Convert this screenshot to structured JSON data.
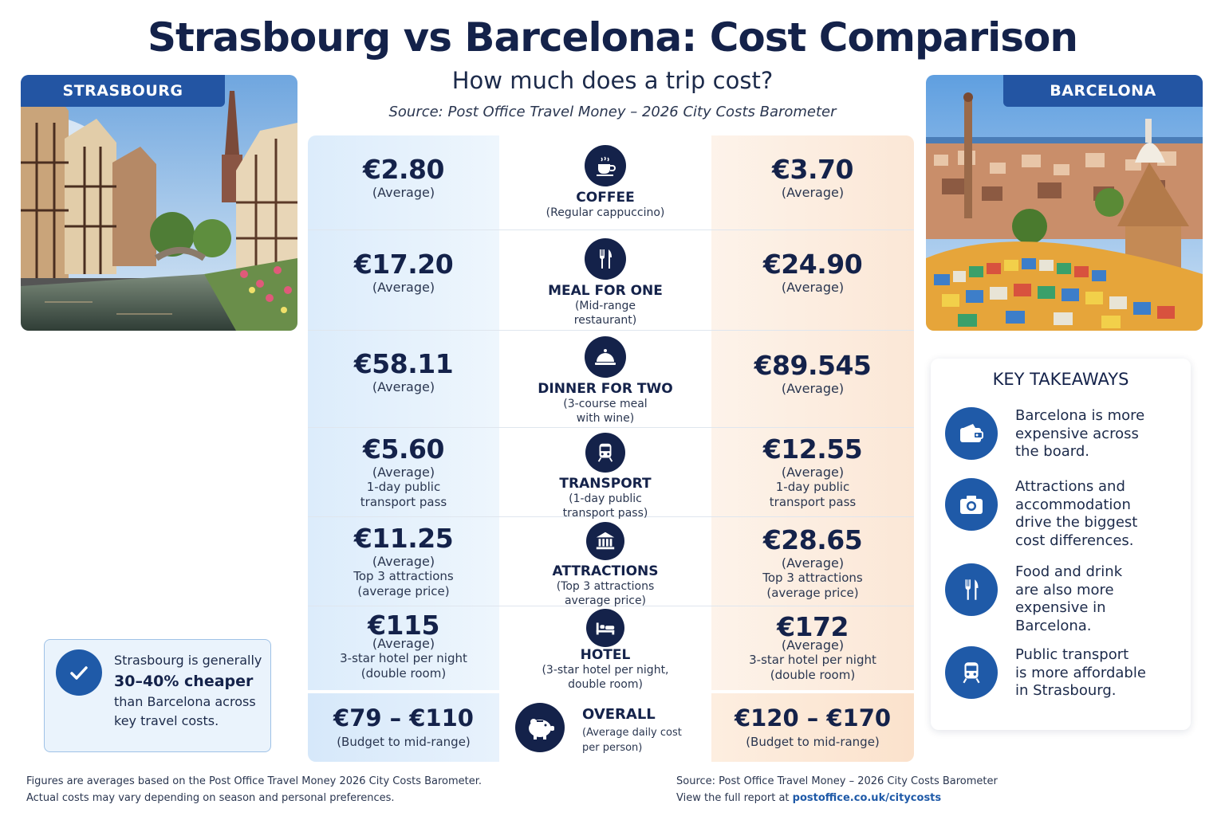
{
  "header": {
    "title": "Strasbourg vs Barcelona: Cost Comparison",
    "subtitle": "How much does a trip cost?",
    "source": "Source: Post Office Travel Money – 2026 City Costs Barometer"
  },
  "cities": {
    "left": "STRASBOURG",
    "right": "BARCELONA"
  },
  "rows": [
    {
      "category": "COFFEE",
      "sub1": "(Regular cappuccino)",
      "sub2": "",
      "icon": "coffee-cup-icon",
      "left_price": "€2.80",
      "left_avg": "(Average)",
      "left_extra1": "",
      "left_extra2": "",
      "right_price": "€3.70",
      "right_avg": "(Average)",
      "right_extra1": "",
      "right_extra2": ""
    },
    {
      "category": "MEAL FOR ONE",
      "sub1": "(Mid-range",
      "sub2": "restaurant)",
      "icon": "fork-knife-icon",
      "left_price": "€17.20",
      "left_avg": "(Average)",
      "left_extra1": "",
      "left_extra2": "",
      "right_price": "€24.90",
      "right_avg": "(Average)",
      "right_extra1": "",
      "right_extra2": ""
    },
    {
      "category": "DINNER FOR TWO",
      "sub1": "(3-course meal",
      "sub2": "with wine)",
      "icon": "cloche-icon",
      "left_price": "€58.11",
      "left_avg": "(Average)",
      "left_extra1": "",
      "left_extra2": "",
      "right_price": "€89.545",
      "right_avg": "(Average)",
      "right_extra1": "",
      "right_extra2": ""
    },
    {
      "category": "TRANSPORT",
      "sub1": "(1-day public",
      "sub2": "transport pass)",
      "icon": "train-icon",
      "left_price": "€5.60",
      "left_avg": "(Average)",
      "left_extra1": "1-day public",
      "left_extra2": "transport pass",
      "right_price": "€12.55",
      "right_avg": "(Average)",
      "right_extra1": "1-day public",
      "right_extra2": "transport pass"
    },
    {
      "category": "ATTRACTIONS",
      "sub1": "(Top 3 attractions",
      "sub2": "average price)",
      "icon": "museum-icon",
      "left_price": "€11.25",
      "left_avg": "(Average)",
      "left_extra1": "Top 3 attractions",
      "left_extra2": "(average price)",
      "right_price": "€28.65",
      "right_avg": "(Average)",
      "right_extra1": "Top 3 attractions",
      "right_extra2": "(average price)"
    },
    {
      "category": "HOTEL",
      "sub1": "(3-star hotel per night,",
      "sub2": "double room)",
      "icon": "bed-icon",
      "left_price": "€115",
      "left_avg": "(Average)",
      "left_extra1": "3-star hotel per night",
      "left_extra2": "(double room)",
      "right_price": "€172",
      "right_avg": "(Average)",
      "right_extra1": "3-star hotel per night",
      "right_extra2": "(double room)"
    }
  ],
  "overall": {
    "label": "OVERALL",
    "desc1": "(Average daily cost",
    "desc2": "per person)",
    "left_price": "€79 – €110",
    "left_sub": "(Budget to mid-range)",
    "right_price": "€120 – €170",
    "right_sub": "(Budget to mid-range)"
  },
  "cheaper": {
    "line1": "Strasbourg is generally",
    "strong": "30–40% cheaper",
    "line2": "than Barcelona across",
    "line3": "key travel costs."
  },
  "takeaways": {
    "title": "KEY TAKEAWAYS",
    "items": [
      {
        "icon": "wallet-icon",
        "l1": "Barcelona is more",
        "l2": "expensive across",
        "l3": "the board.",
        "l4": ""
      },
      {
        "icon": "camera-icon",
        "l1": "Attractions and",
        "l2": "accommodation",
        "l3": "drive the biggest",
        "l4": "cost differences."
      },
      {
        "icon": "fork-knife-icon",
        "l1": "Food and drink",
        "l2": "are also more",
        "l3": "expensive in",
        "l4": "Barcelona."
      },
      {
        "icon": "train-icon",
        "l1": "Public transport",
        "l2": "is more affordable",
        "l3": "in Strasbourg.",
        "l4": ""
      }
    ]
  },
  "footer": {
    "left1": "Figures are averages based on the Post Office Travel Money 2026 City Costs Barometer.",
    "left2": "Actual costs may vary depending on season and personal preferences.",
    "right1": "Source:  Post Office Travel Money – 2026 City Costs Barometer",
    "right2_prefix": "View the full report at ",
    "right2_link": "postoffice.co.uk/citycosts"
  },
  "colors": {
    "navy": "#14224a",
    "accent_blue": "#1f5aa8",
    "left_column": "#dcecfb",
    "right_column": "#fbe7d6"
  }
}
